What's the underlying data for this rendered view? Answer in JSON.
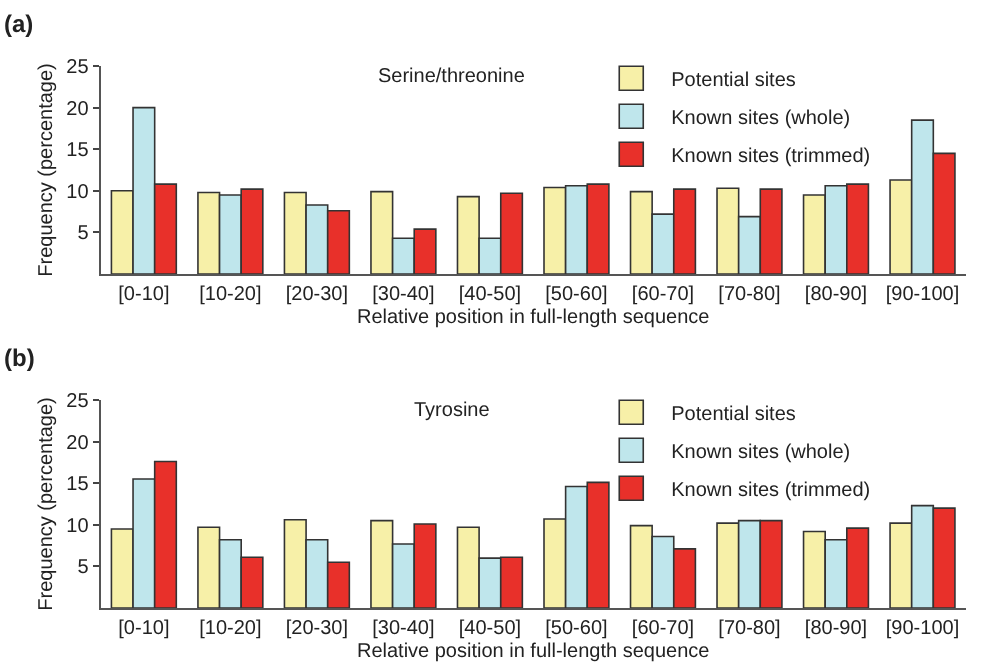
{
  "chart_data": [
    {
      "type": "bar",
      "title": "Serine/threonine",
      "xlabel": "Relative position in full-length sequence",
      "ylabel": "Frequency (percentage)",
      "annotations": [
        "(a)"
      ],
      "legend": "top right",
      "grid": false,
      "categories": [
        "[0-10]",
        "[10-20]",
        "[20-30]",
        "[30-40]",
        "[40-50]",
        "[50-60]",
        "[60-70]",
        "[70-80]",
        "[80-90]",
        "[90-100]"
      ],
      "ylim": [
        0,
        25
      ],
      "yticks": [
        5,
        10,
        15,
        20,
        25
      ],
      "series": [
        {
          "name": "Potential sites",
          "color": "#f7f0a8",
          "values": [
            10,
            9.8,
            9.8,
            9.9,
            9.3,
            10.4,
            9.9,
            10.3,
            9.5,
            11.3
          ]
        },
        {
          "name": "Known sites (whole)",
          "color": "#bfe6ec",
          "values": [
            20,
            9.5,
            8.3,
            4.3,
            4.3,
            10.6,
            7.2,
            6.9,
            10.6,
            18.5
          ]
        },
        {
          "name": "Known sites (trimmed)",
          "color": "#e8302a",
          "values": [
            10.8,
            10.2,
            7.6,
            5.4,
            9.7,
            10.8,
            10.2,
            10.2,
            10.8,
            14.5
          ]
        }
      ]
    },
    {
      "type": "bar",
      "title": "Tyrosine",
      "xlabel": "Relative position in full-length sequence",
      "ylabel": "Frequency (percentage)",
      "annotations": [
        "(b)"
      ],
      "legend": "top right",
      "grid": false,
      "categories": [
        "[0-10]",
        "[10-20]",
        "[20-30]",
        "[30-40]",
        "[40-50]",
        "[50-60]",
        "[60-70]",
        "[70-80]",
        "[80-90]",
        "[90-100]"
      ],
      "ylim": [
        0,
        25
      ],
      "yticks": [
        5,
        10,
        15,
        20,
        25
      ],
      "series": [
        {
          "name": "Potential sites",
          "color": "#f7f0a8",
          "values": [
            9.5,
            9.7,
            10.6,
            10.5,
            9.7,
            10.7,
            9.9,
            10.2,
            9.2,
            10.2
          ]
        },
        {
          "name": "Known sites (whole)",
          "color": "#bfe6ec",
          "values": [
            15.5,
            8.2,
            8.2,
            7.7,
            6.0,
            14.6,
            8.6,
            10.5,
            8.2,
            12.3
          ]
        },
        {
          "name": "Known sites (trimmed)",
          "color": "#e8302a",
          "values": [
            17.6,
            6.1,
            5.5,
            10.1,
            6.1,
            15.1,
            7.1,
            10.5,
            9.6,
            12.0
          ]
        }
      ]
    }
  ]
}
